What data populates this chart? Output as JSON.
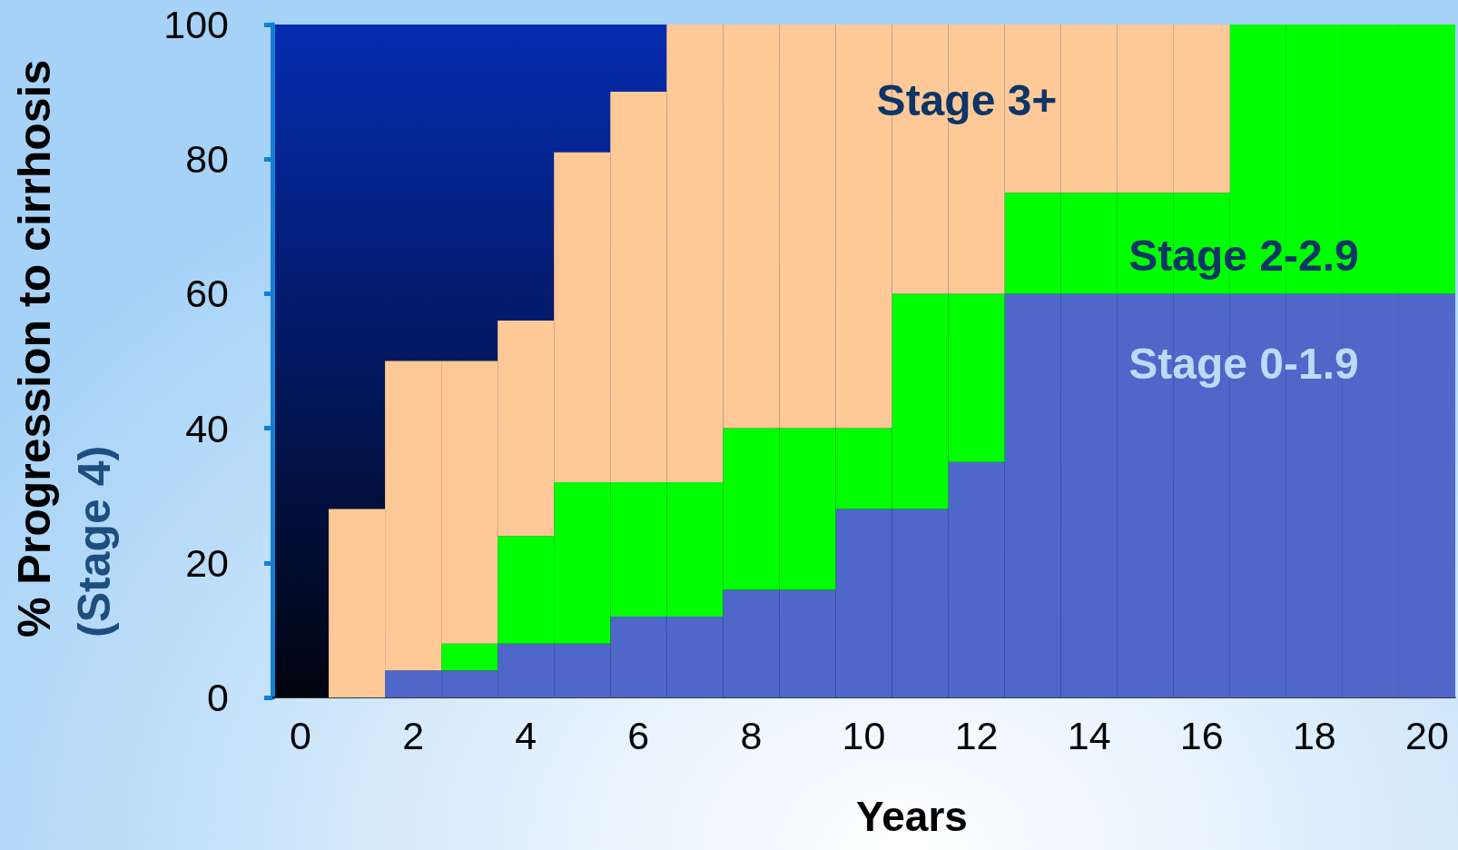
{
  "chart_data": {
    "type": "bar",
    "stacked": true,
    "xlabel": "Years",
    "ylabel": "% Progression to cirrhosis\n(Stage 4)",
    "categories": [
      "0",
      null,
      "2",
      null,
      "4",
      null,
      "6",
      null,
      "8",
      null,
      "10",
      null,
      "12",
      null,
      "14",
      null,
      "16",
      null,
      "18",
      null,
      "20"
    ],
    "ylim": [
      0,
      100
    ],
    "yticks": [
      0,
      20,
      40,
      60,
      80,
      100
    ],
    "series": [
      {
        "name": "Stage 0-1.9",
        "color": "#4f67c9",
        "values": [
          0,
          0,
          4,
          4,
          8,
          8,
          12,
          12,
          16,
          16,
          28,
          28,
          35,
          60,
          60,
          60,
          60,
          60,
          60,
          60,
          60
        ]
      },
      {
        "name": "Stage 2-2.9",
        "color": "#00ff00",
        "values": [
          0,
          0,
          0,
          4,
          16,
          24,
          20,
          20,
          24,
          24,
          12,
          32,
          25,
          15,
          15,
          15,
          15,
          40,
          40,
          40,
          40
        ]
      },
      {
        "name": "Stage 3+",
        "color": "#fec997",
        "values": [
          0,
          28,
          46,
          42,
          32,
          49,
          58,
          68,
          60,
          60,
          60,
          40,
          40,
          25,
          25,
          25,
          25,
          0,
          0,
          0,
          0
        ]
      }
    ]
  }
}
